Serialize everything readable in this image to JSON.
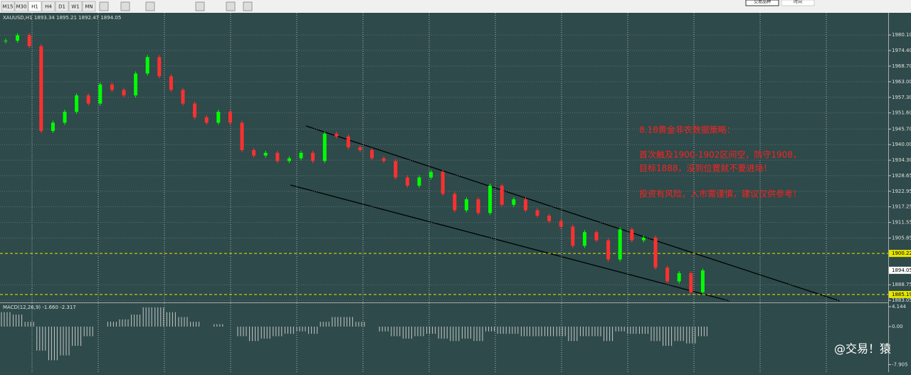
{
  "toolbar": {
    "timeframes": [
      "M15",
      "M30",
      "H1",
      "H4",
      "D1",
      "W1",
      "MN"
    ],
    "buttons": [
      "交易品种",
      "时间"
    ]
  },
  "chart_data": [
    {
      "type": "candle",
      "title": "XAUUSD,H1 1893.34 1895.21 1892.47 1894.05",
      "values": [
        1978,
        1980,
        1976,
        1945,
        1948,
        1952,
        1958,
        1955,
        1962,
        1960,
        1958,
        1966,
        1972,
        1965,
        1960,
        1955,
        1950,
        1948,
        1952,
        1948,
        1938,
        1936,
        1937,
        1934,
        1935,
        1937,
        1934,
        1944,
        1943,
        1939,
        1938,
        1935,
        1934,
        1928,
        1925,
        1928,
        1930,
        1922,
        1916,
        1920,
        1915,
        1925,
        1918,
        1920,
        1916,
        1914,
        1912,
        1910,
        1903,
        1908,
        1905,
        1898,
        1909,
        1905,
        1906,
        1895,
        1890,
        1893,
        1886,
        1894
      ],
      "up_color": "#00ff00",
      "down_color": "#ff3030",
      "ylim": [
        1882.3,
        1988.2
      ],
      "yticks": [
        {
          "value": 1980.1,
          "label": "1980.10"
        },
        {
          "value": 1974.4,
          "label": "1974.40"
        },
        {
          "value": 1968.7,
          "label": "1968.70"
        },
        {
          "value": 1963.0,
          "label": "1963.00"
        },
        {
          "value": 1957.3,
          "label": "1957.30"
        },
        {
          "value": 1951.6,
          "label": "1951.60"
        },
        {
          "value": 1945.7,
          "label": "1945.70"
        },
        {
          "value": 1940.0,
          "label": "1940.00"
        },
        {
          "value": 1934.3,
          "label": "1934.30"
        },
        {
          "value": 1928.65,
          "label": "1928.65"
        },
        {
          "value": 1922.95,
          "label": "1922.95"
        },
        {
          "value": 1917.25,
          "label": "1917.25"
        },
        {
          "value": 1911.55,
          "label": "1911.55"
        },
        {
          "value": 1905.85,
          "label": "1905.85"
        },
        {
          "value": 1888.75,
          "label": "1888.75"
        },
        {
          "value": 1883.05,
          "label": "1883.05"
        }
      ],
      "levels": [
        {
          "value": 1900.22,
          "label": "1900.22"
        },
        {
          "value": 1885.19,
          "label": "1885.19"
        }
      ],
      "last": {
        "value": 1894.05,
        "label": "1894.05"
      },
      "annotations": [
        "8.18黄金非农数据策略：",
        "首次触及1900-1902区间空，防守1908，",
        "目标1888，没到位置就不要进场！",
        "投资有风险，入市需谨慎，建议仅供参考！"
      ]
    },
    {
      "type": "bar",
      "title": "MACD(12,26,9) -1.660 -2.317",
      "values": [
        3,
        2.5,
        1,
        -5,
        -7,
        -6,
        -4,
        -2,
        0,
        1,
        1.5,
        2.5,
        4,
        4,
        3,
        2,
        1,
        0,
        0.5,
        0,
        -2,
        -3,
        -2.5,
        -2,
        -1.5,
        -1,
        -1.5,
        1,
        2,
        2,
        1,
        0,
        -1,
        -2,
        -2.5,
        -2,
        -1.5,
        -2.5,
        -3,
        -2.5,
        -3,
        -1,
        -1.5,
        -1.5,
        -2,
        -2,
        -2,
        -2,
        -3,
        -2,
        -2,
        -3,
        -1,
        -1.5,
        -1.5,
        -3,
        -4,
        -3,
        -3.5,
        -2
      ],
      "color": "#c8c8c8",
      "ylim": [
        -9.47,
        4.73
      ],
      "yticks": [
        {
          "value": 4.144,
          "label": "4.144"
        },
        {
          "value": 0,
          "label": "0.00"
        },
        {
          "value": -7.905,
          "label": "-7.905"
        }
      ]
    }
  ],
  "watermark": "@交易！猿"
}
